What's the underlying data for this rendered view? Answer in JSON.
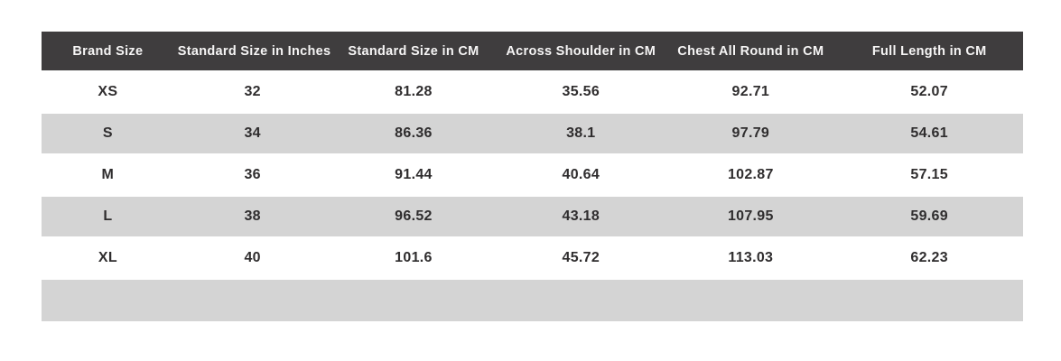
{
  "chart_data": {
    "type": "table",
    "title": "",
    "columns": [
      "Brand Size",
      "Standard Size in Inches",
      "Standard Size in CM",
      "Across Shoulder in CM",
      "Chest All Round in CM",
      "Full Length in CM"
    ],
    "rows": [
      [
        "XS",
        32,
        81.28,
        35.56,
        92.71,
        52.07
      ],
      [
        "S",
        34,
        86.36,
        38.1,
        97.79,
        54.61
      ],
      [
        "M",
        36,
        91.44,
        40.64,
        102.87,
        57.15
      ],
      [
        "L",
        38,
        96.52,
        43.18,
        107.95,
        59.69
      ],
      [
        "XL",
        40,
        101.6,
        45.72,
        113.03,
        62.23
      ],
      [
        "",
        "",
        "",
        "",
        "",
        ""
      ]
    ],
    "layout": {
      "header_position": "top",
      "cell_alignment": "center",
      "grid": "off",
      "striped_row_indices": [
        1,
        3,
        5
      ],
      "trailing_empty_row": true
    }
  },
  "colors": {
    "header_bg": "#3f3d3e",
    "header_text": "#f6f5f5",
    "stripe_row_bg": "#d4d4d4",
    "body_text": "#2f2d2e",
    "page_bg": "#ffffff"
  }
}
